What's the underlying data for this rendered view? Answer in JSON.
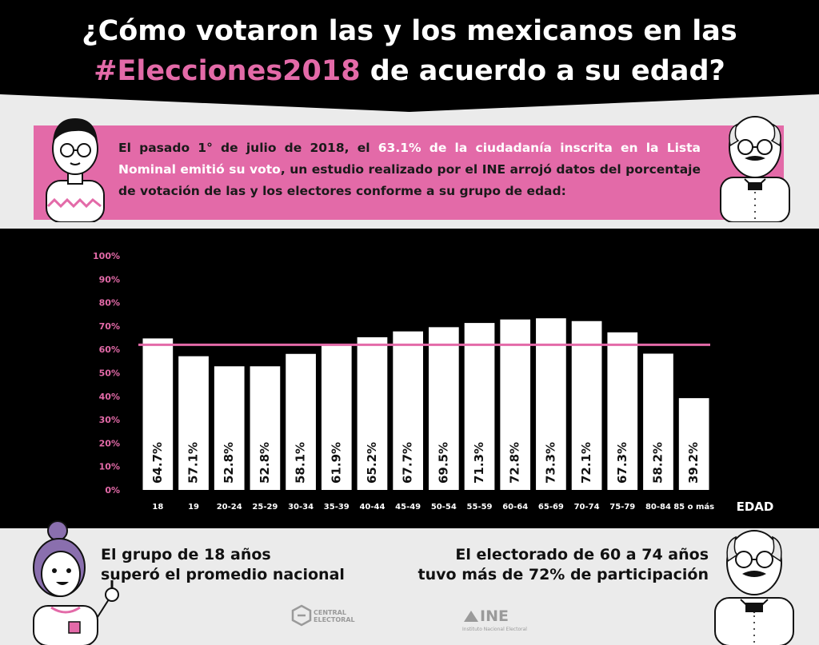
{
  "header": {
    "title_line1": "¿Cómo votaron las y los mexicanos en las",
    "title_hashtag": "#Elecciones2018",
    "title_line2_rest": " de acuerdo a su edad?"
  },
  "intro": {
    "part1": "El pasado 1° de julio de 2018, el ",
    "highlight": "63.1% de la ciudadanía inscrita en la Lista Nominal emitió su voto",
    "part2": ", un estudio realizado por el INE arrojó datos del porcentaje de votación de las y los electores conforme a su grupo de edad:"
  },
  "chart_data": {
    "type": "bar",
    "categories": [
      "18",
      "19",
      "20-24",
      "25-29",
      "30-34",
      "35-39",
      "40-44",
      "45-49",
      "50-54",
      "55-59",
      "60-64",
      "65-69",
      "70-74",
      "75-79",
      "80-84",
      "85 o más"
    ],
    "values": [
      64.7,
      57.1,
      52.8,
      52.8,
      58.1,
      61.9,
      65.2,
      67.7,
      69.5,
      71.3,
      72.8,
      73.3,
      72.1,
      67.3,
      58.2,
      39.2
    ],
    "data_labels": [
      "64.7%",
      "57.1%",
      "52.8%",
      "52.8%",
      "58.1%",
      "61.9%",
      "65.2%",
      "67.7%",
      "69.5%",
      "71.3%",
      "72.8%",
      "73.3%",
      "72.1%",
      "67.3%",
      "58.2%",
      "39.2%"
    ],
    "ylim": [
      0,
      100
    ],
    "y_ticks": [
      "0%",
      "10%",
      "20%",
      "30%",
      "40%",
      "50%",
      "60%",
      "70%",
      "80%",
      "90%",
      "100%"
    ],
    "xlabel": "EDAD",
    "ylabel": "",
    "reference_line": 62,
    "colors": {
      "bar": "#ffffff",
      "reference": "#e36aa8",
      "background": "#000000",
      "tick_text": "#e36aa8",
      "category_text": "#ffffff"
    }
  },
  "bottom": {
    "left_line1": "El grupo de 18 años",
    "left_line2": "superó el promedio nacional",
    "right_line1": "El electorado de 60 a 74 años",
    "right_line2": "tuvo más de 72% de participación"
  },
  "logos": {
    "central_line1": "CENTRAL",
    "central_line2": "ELECTORAL",
    "ine": "INE",
    "ine_sub": "Instituto Nacional Electoral"
  },
  "colors": {
    "accent": "#e36aa8",
    "dark": "#000000",
    "light": "#ebebeb"
  }
}
